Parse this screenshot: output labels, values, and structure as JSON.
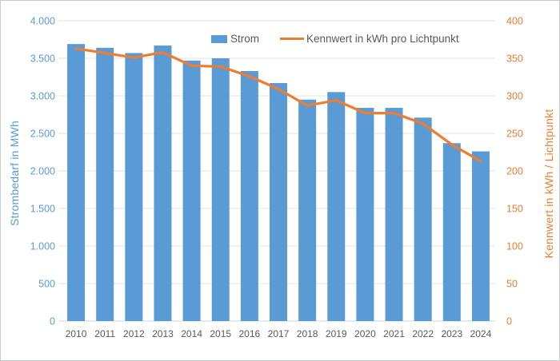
{
  "window": {
    "background": "#ffffff",
    "border_color": "#c9cccf"
  },
  "chart_data": {
    "type": "bar",
    "subtype": "combo-bar-line",
    "categories": [
      "2010",
      "2011",
      "2012",
      "2013",
      "2014",
      "2015",
      "2016",
      "2017",
      "2018",
      "2019",
      "2020",
      "2021",
      "2022",
      "2023",
      "2024"
    ],
    "series": [
      {
        "name": "Strom",
        "type": "bar",
        "axis": "left",
        "color": "#5B9BD5",
        "values": [
          3690,
          3640,
          3570,
          3670,
          3470,
          3500,
          3330,
          3170,
          2950,
          3050,
          2840,
          2840,
          2710,
          2370,
          2260
        ]
      },
      {
        "name": "Kennwert in kWh pro Lichtpunkt",
        "type": "line",
        "axis": "right",
        "color": "#ED7D31",
        "values": [
          363,
          357,
          351,
          358,
          340,
          339,
          326,
          309,
          287,
          294,
          277,
          277,
          263,
          235,
          213
        ]
      }
    ],
    "left_axis": {
      "title": "Strombedarf in MWh",
      "min": 0,
      "max": 4000,
      "step": 500,
      "tick_labels": [
        "0",
        "500",
        "1.000",
        "1.500",
        "2.000",
        "2.500",
        "3.000",
        "3.500",
        "4.000"
      ],
      "color": "#5B9BD5"
    },
    "right_axis": {
      "title": "Kennwert in kWh / Lichtpunkt",
      "min": 0,
      "max": 400,
      "step": 50,
      "tick_labels": [
        "0",
        "50",
        "100",
        "150",
        "200",
        "250",
        "300",
        "350",
        "400"
      ],
      "color": "#ED7D31"
    },
    "x_axis": {
      "tick_color": "#595959",
      "axis_line_color": "#d6d6d6"
    },
    "legend": {
      "position": "top",
      "text_color": "#595959",
      "items": [
        {
          "label": "Strom",
          "marker": "square",
          "color": "#5B9BD5"
        },
        {
          "label": "Kennwert in kWh pro Lichtpunkt",
          "marker": "line",
          "color": "#ED7D31"
        }
      ]
    },
    "grid": true,
    "gridline_color": "#e3e3e3"
  }
}
